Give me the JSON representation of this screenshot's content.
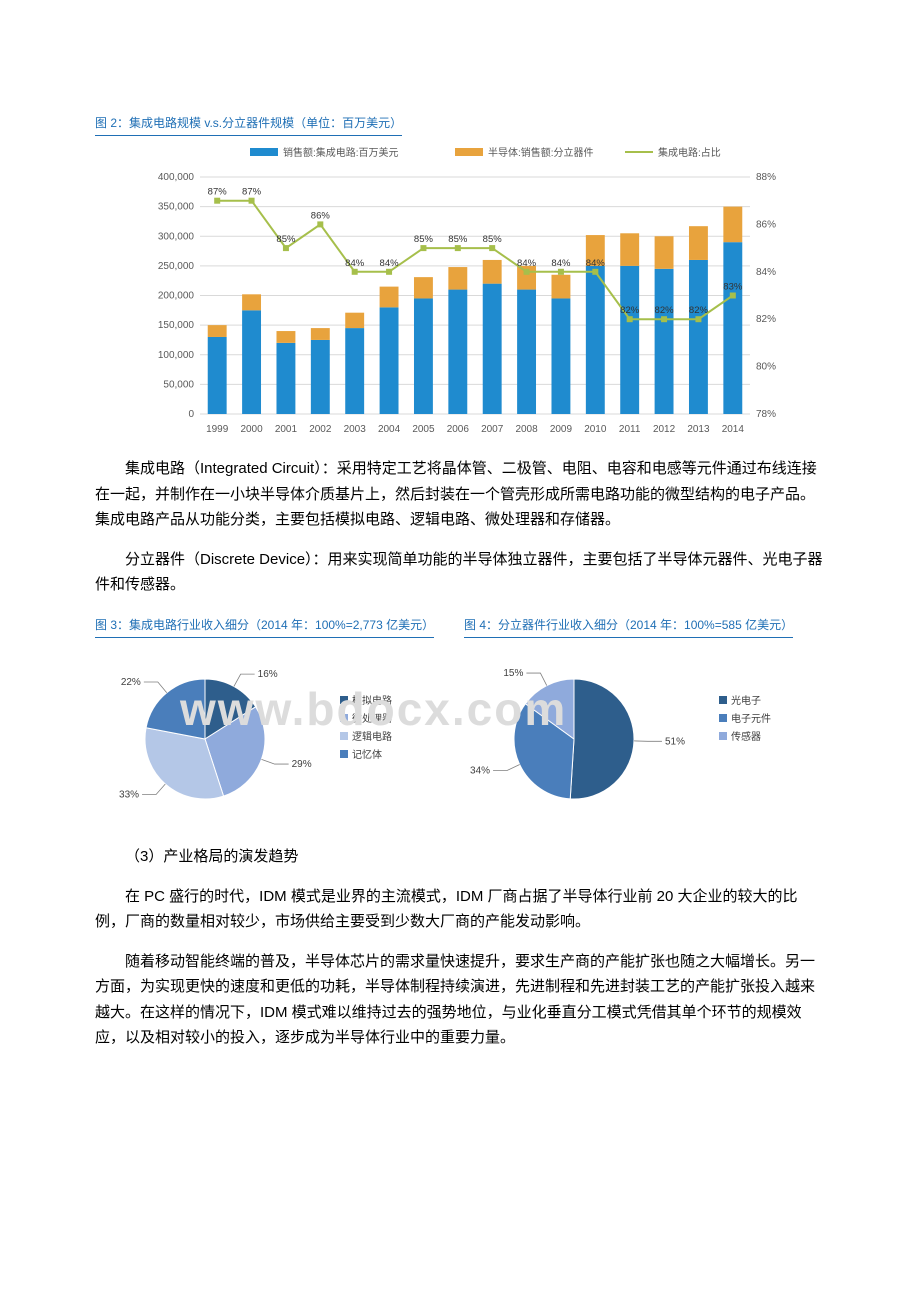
{
  "watermark": "www.bdocx.com",
  "fig2": {
    "title": "图 2：集成电路规模 v.s.分立器件规模（单位：百万美元）",
    "type": "bar+line",
    "legend": {
      "series1": "销售额:集成电路:百万美元",
      "series2": "半导体:销售额:分立器件",
      "series3": "集成电路:占比"
    },
    "categories": [
      "1999",
      "2000",
      "2001",
      "2002",
      "2003",
      "2004",
      "2005",
      "2006",
      "2007",
      "2008",
      "2009",
      "2010",
      "2011",
      "2012",
      "2013",
      "2014"
    ],
    "ic_values": [
      130000,
      175000,
      120000,
      125000,
      145000,
      180000,
      195000,
      210000,
      220000,
      210000,
      195000,
      250000,
      250000,
      245000,
      260000,
      290000
    ],
    "discrete_values": [
      20000,
      27000,
      20000,
      20000,
      26000,
      35000,
      36000,
      38000,
      40000,
      40000,
      40000,
      52000,
      55000,
      55000,
      57000,
      60000
    ],
    "ratio_pct": [
      87,
      87,
      85,
      86,
      84,
      84,
      85,
      85,
      85,
      84,
      84,
      84,
      82,
      82,
      82,
      83
    ],
    "ratio_labels": [
      "87%",
      "87%",
      "85%",
      "86%",
      "84%",
      "84%",
      "85%",
      "85%",
      "85%",
      "84%",
      "84%",
      "84%",
      "82%",
      "82%",
      "82%",
      "83%"
    ],
    "y_left": {
      "min": 0,
      "max": 400000,
      "step": 50000
    },
    "y_right": {
      "min": 78,
      "max": 88,
      "step": 2
    },
    "color_ic": "#1f8bcf",
    "color_discrete": "#e8a33d",
    "color_ratio": "#a6bf4b",
    "grid_color": "#d9d9d9",
    "axis_text_color": "#595959",
    "legend_text_color": "#595959",
    "label_fontsize": 10
  },
  "para1": "集成电路（Integrated Circuit）：采用特定工艺将晶体管、二极管、电阻、电容和电感等元件通过布线连接在一起，并制作在一小块半导体介质基片上，然后封装在一个管壳形成所需电路功能的微型结构的电子产品。集成电路产品从功能分类，主要包括模拟电路、逻辑电路、微处理器和存储器。",
  "para2": "分立器件（Discrete Device）：用来实现简单功能的半导体独立器件，主要包括了半导体元器件、光电子器件和传感器。",
  "fig3": {
    "title": "图 3：集成电路行业收入细分（2014 年：100%=2,773 亿美元）",
    "type": "pie",
    "slices": [
      {
        "label": "模拟电路",
        "value": 16,
        "color": "#2e5e8c"
      },
      {
        "label": "微处理器",
        "value": 29,
        "color": "#8faadc"
      },
      {
        "label": "逻辑电路",
        "value": 33,
        "color": "#b4c7e7"
      },
      {
        "label": "记忆体",
        "value": 22,
        "color": "#4a7ebb"
      }
    ],
    "label_color": "#404040",
    "label_fontsize": 10
  },
  "fig4": {
    "title": "图 4：分立器件行业收入细分（2014 年：100%=585 亿美元）",
    "type": "pie",
    "slices": [
      {
        "label": "光电子",
        "value": 51,
        "color": "#2e5e8c"
      },
      {
        "label": "电子元件",
        "value": 34,
        "color": "#4a7ebb"
      },
      {
        "label": "传感器",
        "value": 15,
        "color": "#8faadc"
      }
    ],
    "label_color": "#404040",
    "label_fontsize": 10
  },
  "subhead": "（3）产业格局的演发趋势",
  "para3": "在 PC 盛行的时代，IDM 模式是业界的主流模式，IDM 厂商占据了半导体行业前 20 大企业的较大的比例，厂商的数量相对较少，市场供给主要受到少数大厂商的产能发动影响。",
  "para4": "随着移动智能终端的普及，半导体芯片的需求量快速提升，要求生产商的产能扩张也随之大幅增长。另一方面，为实现更快的速度和更低的功耗，半导体制程持续演进，先进制程和先进封装工艺的产能扩张投入越来越大。在这样的情况下，IDM 模式难以维持过去的强势地位，与业化垂直分工模式凭借其单个环节的规模效应，以及相对较小的投入，逐步成为半导体行业中的重要力量。"
}
